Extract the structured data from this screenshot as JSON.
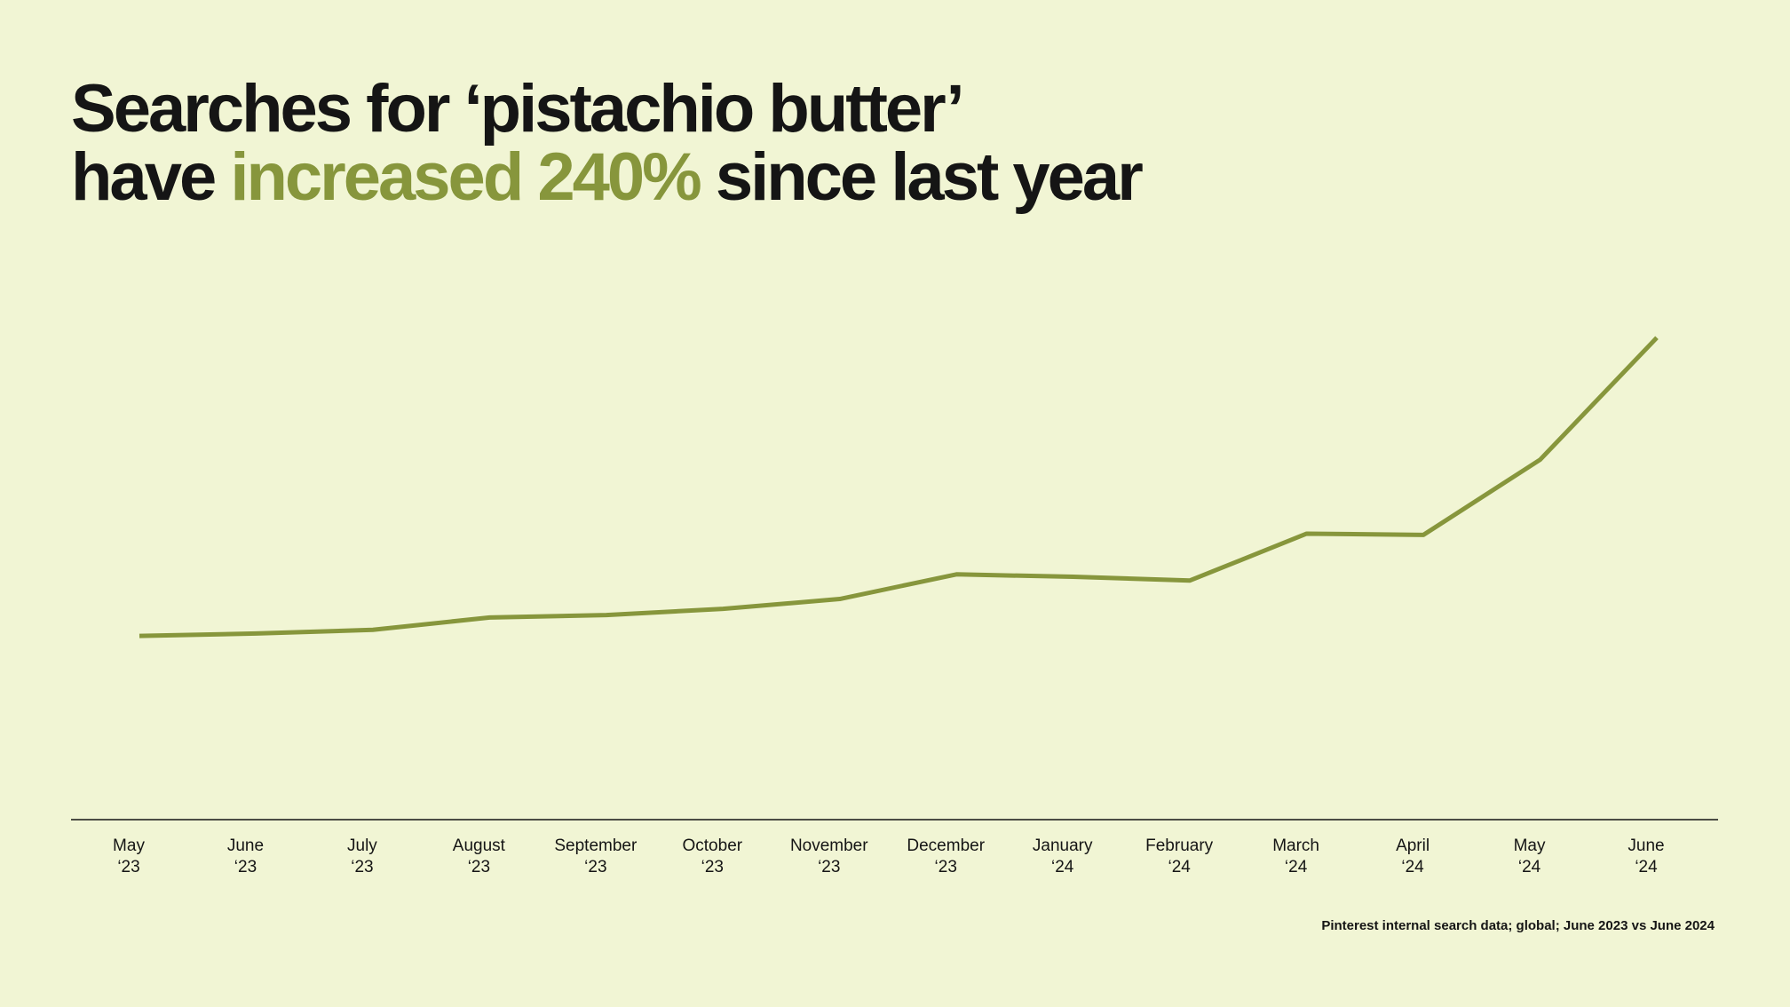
{
  "chart_data": {
    "type": "line",
    "title": [
      "Searches for ‘pistachio butter’",
      "have",
      "increased 240%",
      "since last year"
    ],
    "categories": [
      [
        "May",
        "‘23"
      ],
      [
        "June",
        "‘23"
      ],
      [
        "July",
        "‘23"
      ],
      [
        "August",
        "‘23"
      ],
      [
        "September",
        "‘23"
      ],
      [
        "October",
        "‘23"
      ],
      [
        "November",
        "‘23"
      ],
      [
        "December",
        "‘23"
      ],
      [
        "January",
        "‘24"
      ],
      [
        "February",
        "‘24"
      ],
      [
        "March",
        "‘24"
      ],
      [
        "April",
        "‘24"
      ],
      [
        "May",
        "‘24"
      ],
      [
        "June",
        "‘24"
      ]
    ],
    "values": [
      98,
      100,
      103,
      113,
      115,
      120,
      128,
      148,
      146,
      143,
      181,
      180,
      241,
      340
    ],
    "color": "#87963c",
    "ylim": [
      -51,
      400
    ],
    "source": "Pinterest internal search data; global; June 2023 vs June 2024"
  }
}
